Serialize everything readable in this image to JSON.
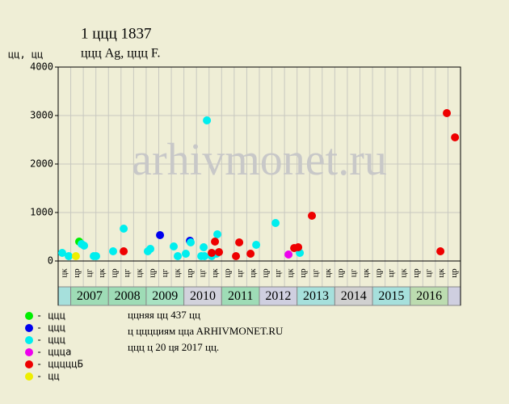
{
  "chart_data": {
    "type": "scatter",
    "title": "1 ццц 1837",
    "subtitle": "ццц Ag, ццц F.",
    "y_label": "цц, цц",
    "watermark": "arhivmonet.ru",
    "categories": [
      "цк",
      "цр",
      "цг",
      "цк",
      "цр",
      "цг",
      "цк",
      "цр",
      "цг",
      "цк",
      "цр",
      "цг",
      "цк",
      "цр",
      "цг",
      "цк",
      "цр",
      "цг",
      "цк",
      "цр",
      "цг",
      "цк",
      "цр",
      "цг",
      "цк",
      "цр",
      "цг",
      "цк",
      "цр",
      "цг",
      "цк",
      "цр"
    ],
    "years": [
      {
        "label": "2007",
        "color": "#9edcb6"
      },
      {
        "label": "2008",
        "color": "#9edcb6"
      },
      {
        "label": "2009",
        "color": "#a8e2c2"
      },
      {
        "label": "2010",
        "color": "#d2d2dc"
      },
      {
        "label": "2011",
        "color": "#9edcb6"
      },
      {
        "label": "2012",
        "color": "#cfcfe0"
      },
      {
        "label": "2013",
        "color": "#a6e0dc"
      },
      {
        "label": "2014",
        "color": "#d0d0d0"
      },
      {
        "label": "2015",
        "color": "#a6e0dc"
      },
      {
        "label": "2016",
        "color": "#bcdcb0"
      }
    ],
    "xlim": [
      0,
      32
    ],
    "ylim": [
      0,
      4000
    ],
    "yticks": [
      0,
      1000,
      2000,
      3000,
      4000
    ],
    "grid": true,
    "series": [
      {
        "name": "- ццц",
        "color": "#00ee00",
        "x": [
          1.67
        ],
        "values": [
          400
        ]
      },
      {
        "name": "- ццц",
        "color": "#0000ee",
        "x": [
          8.1,
          10.48
        ],
        "values": [
          533,
          417
        ]
      },
      {
        "name": "- ццц",
        "color": "#00eeee",
        "x": [
          0.32,
          0.84,
          1.86,
          2.06,
          2.83,
          3.02,
          4.37,
          5.21,
          7.13,
          7.33,
          9.19,
          9.51,
          10.15,
          10.54,
          11.38,
          11.57,
          11.63,
          11.83,
          12.21,
          12.66,
          12.6,
          15.75,
          17.29,
          19.22
        ],
        "values": [
          167,
          100,
          350,
          317,
          100,
          100,
          200,
          667,
          200,
          250,
          300,
          100,
          150,
          383,
          100,
          283,
          100,
          2900,
          100,
          550,
          150,
          333,
          783,
          167
        ]
      },
      {
        "name": "- ццца",
        "color": "#ee00ee",
        "x": [
          18.32
        ],
        "values": [
          133
        ]
      },
      {
        "name": "- цццццБ",
        "color": "#ee0000",
        "x": [
          5.21,
          12.21,
          12.47,
          12.79,
          14.14,
          14.4,
          15.3,
          18.77,
          19.09,
          20.18,
          30.4,
          30.91,
          31.56
        ],
        "values": [
          200,
          167,
          400,
          183,
          100,
          383,
          150,
          267,
          283,
          933,
          200,
          3050,
          2550
        ]
      },
      {
        "name": "- цц",
        "color": "#eeee00",
        "x": [
          1.41
        ],
        "values": [
          100
        ]
      }
    ],
    "notes": [
      "ццняя цц 437 цц",
      "ц цццциям ццa ARHIVMONET.RU",
      "ццц ц 20 ця 2017 цц."
    ]
  }
}
